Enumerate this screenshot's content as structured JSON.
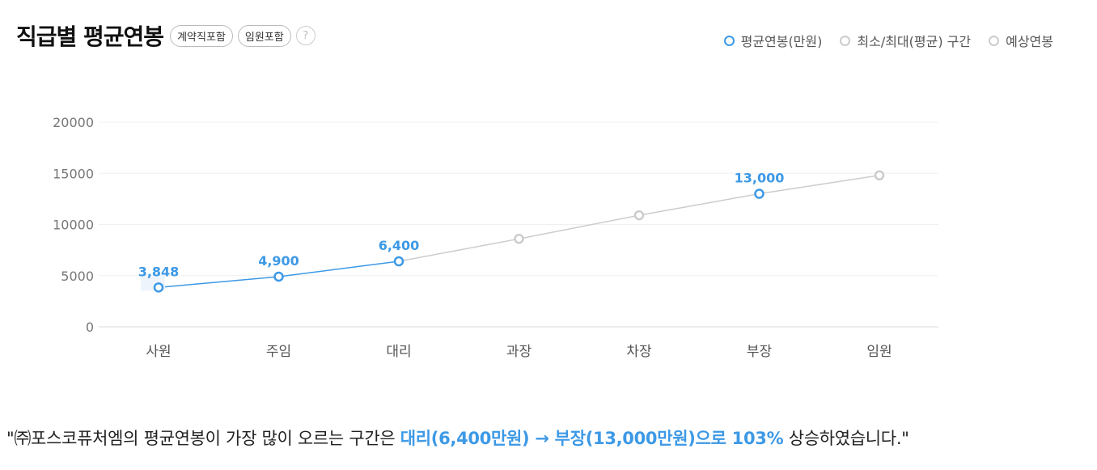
{
  "header": {
    "title": "직급별 평균연봉",
    "tags": [
      "계약직포함",
      "임원포함"
    ],
    "help_icon": "question-circle-icon",
    "help_text": "?"
  },
  "legend": [
    {
      "label": "평균연봉(만원)",
      "color": "#3d99e6"
    },
    {
      "label": "최소/최대(평균) 구간",
      "color": "#cccccc"
    },
    {
      "label": "예상연봉",
      "color": "#cccccc"
    }
  ],
  "chart_data": {
    "type": "line",
    "categories": [
      "사원",
      "주임",
      "대리",
      "과장",
      "차장",
      "부장",
      "임원"
    ],
    "ylim": [
      0,
      20000
    ],
    "yticks": [
      "0",
      "5000",
      "10000",
      "15000",
      "20000"
    ],
    "grid": true,
    "legend_position": "top-right",
    "series": [
      {
        "name": "평균연봉(만원)",
        "color": "#3d99e6",
        "points": [
          {
            "category": "사원",
            "value": 3848
          },
          {
            "category": "주임",
            "value": 4900
          },
          {
            "category": "대리",
            "value": 6400
          },
          {
            "category": "부장",
            "value": 13000
          }
        ]
      },
      {
        "name": "예상연봉",
        "color": "#cccccc",
        "points": [
          {
            "category": "과장",
            "value": 8600
          },
          {
            "category": "차장",
            "value": 10900
          },
          {
            "category": "임원",
            "value": 14800
          }
        ]
      }
    ],
    "data_labels": [
      {
        "category": "사원",
        "text": "3,848"
      },
      {
        "category": "주임",
        "text": "4,900"
      },
      {
        "category": "대리",
        "text": "6,400"
      },
      {
        "category": "부장",
        "text": "13,000"
      }
    ]
  },
  "summary": {
    "prefix": "\"㈜포스코퓨처엠의 평균연봉이 가장 많이 오르는 구간은 ",
    "highlight": "대리(6,400만원) → 부장(13,000만원)으로 103%",
    "suffix": " 상승하였습니다.\""
  }
}
